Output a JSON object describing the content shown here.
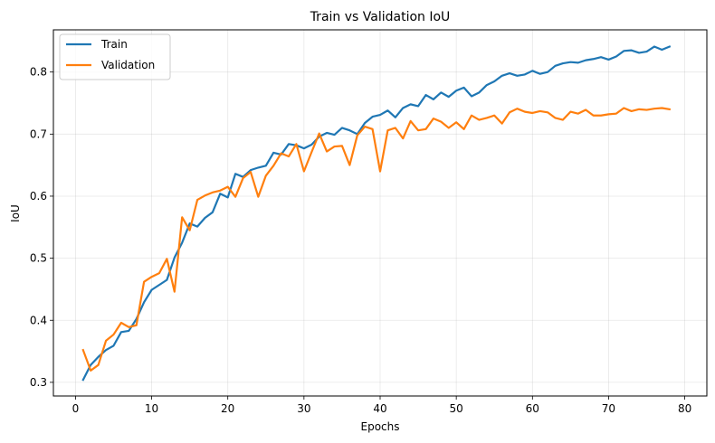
{
  "chart_data": {
    "type": "line",
    "title": "Train vs Validation IoU",
    "xlabel": "Epochs",
    "ylabel": "IoU",
    "xlim": [
      -2.9,
      82.9
    ],
    "ylim": [
      0.278,
      0.868
    ],
    "xticks": [
      0,
      10,
      20,
      30,
      40,
      50,
      60,
      70,
      80
    ],
    "yticks": [
      0.3,
      0.4,
      0.5,
      0.6,
      0.7,
      0.8
    ],
    "ytick_labels": [
      "0.3",
      "0.4",
      "0.5",
      "0.6",
      "0.7",
      "0.8"
    ],
    "grid": true,
    "legend_position": "top-left",
    "x": [
      1,
      2,
      3,
      4,
      5,
      6,
      7,
      8,
      9,
      10,
      11,
      12,
      13,
      14,
      15,
      16,
      17,
      18,
      19,
      20,
      21,
      22,
      23,
      24,
      25,
      26,
      27,
      28,
      29,
      30,
      31,
      32,
      33,
      34,
      35,
      36,
      37,
      38,
      39,
      40,
      41,
      42,
      43,
      44,
      45,
      46,
      47,
      48,
      49,
      50,
      51,
      52,
      53,
      54,
      55,
      56,
      57,
      58,
      59,
      60,
      61,
      62,
      63,
      64,
      65,
      66,
      67,
      68,
      69,
      70,
      71,
      72,
      73,
      74,
      75,
      76,
      77,
      78
    ],
    "series": [
      {
        "name": "Train",
        "color": "#1f77b4",
        "values": [
          0.304,
          0.328,
          0.341,
          0.352,
          0.359,
          0.381,
          0.383,
          0.402,
          0.429,
          0.449,
          0.457,
          0.465,
          0.501,
          0.525,
          0.556,
          0.551,
          0.565,
          0.574,
          0.604,
          0.598,
          0.636,
          0.631,
          0.642,
          0.646,
          0.649,
          0.67,
          0.667,
          0.684,
          0.682,
          0.677,
          0.683,
          0.696,
          0.702,
          0.699,
          0.71,
          0.706,
          0.7,
          0.718,
          0.728,
          0.731,
          0.738,
          0.727,
          0.742,
          0.748,
          0.745,
          0.763,
          0.756,
          0.767,
          0.76,
          0.77,
          0.775,
          0.761,
          0.767,
          0.779,
          0.785,
          0.794,
          0.798,
          0.794,
          0.796,
          0.802,
          0.797,
          0.8,
          0.81,
          0.814,
          0.816,
          0.815,
          0.819,
          0.821,
          0.824,
          0.82,
          0.825,
          0.834,
          0.835,
          0.831,
          0.833,
          0.841,
          0.836,
          0.841
        ]
      },
      {
        "name": "Validation",
        "color": "#ff7f0e",
        "values": [
          0.352,
          0.319,
          0.328,
          0.367,
          0.377,
          0.396,
          0.389,
          0.392,
          0.462,
          0.47,
          0.476,
          0.499,
          0.446,
          0.566,
          0.545,
          0.594,
          0.601,
          0.606,
          0.609,
          0.615,
          0.599,
          0.629,
          0.639,
          0.599,
          0.633,
          0.649,
          0.669,
          0.664,
          0.684,
          0.64,
          0.671,
          0.701,
          0.672,
          0.68,
          0.681,
          0.65,
          0.698,
          0.712,
          0.708,
          0.64,
          0.706,
          0.71,
          0.693,
          0.721,
          0.706,
          0.708,
          0.725,
          0.72,
          0.71,
          0.719,
          0.708,
          0.73,
          0.723,
          0.726,
          0.73,
          0.717,
          0.735,
          0.741,
          0.736,
          0.734,
          0.737,
          0.735,
          0.726,
          0.723,
          0.736,
          0.733,
          0.739,
          0.73,
          0.73,
          0.732,
          0.733,
          0.742,
          0.737,
          0.74,
          0.739,
          0.741,
          0.742,
          0.74
        ]
      }
    ]
  }
}
